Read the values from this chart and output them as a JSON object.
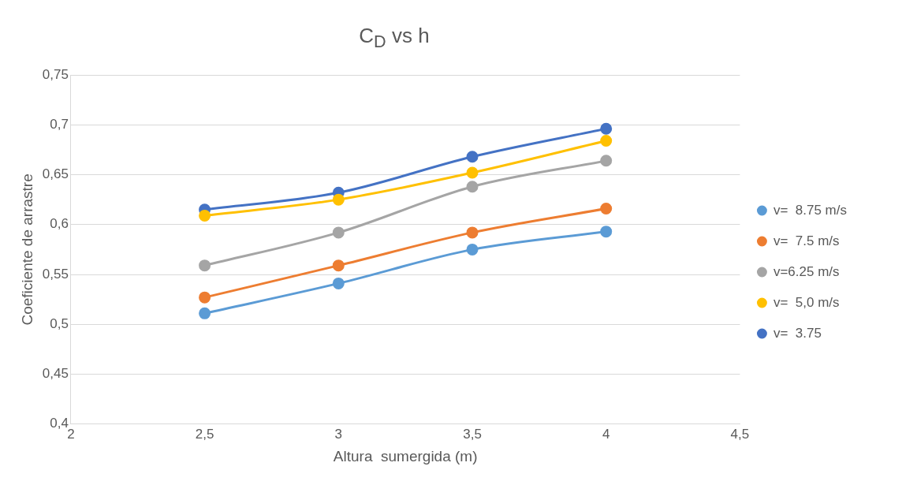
{
  "chart_data": {
    "type": "line",
    "title": "C$_{D}$ vs h",
    "xlabel": "Altura  sumergida (m)",
    "ylabel": "Coeficiente de arrastre",
    "x": [
      2.5,
      3,
      3.5,
      4
    ],
    "series": [
      {
        "name": "v=  8.75 m/s",
        "color": "#5b9bd5",
        "values": [
          0.511,
          0.541,
          0.575,
          0.593
        ]
      },
      {
        "name": "v=  7.5 m/s",
        "color": "#ed7d31",
        "values": [
          0.527,
          0.559,
          0.592,
          0.616
        ]
      },
      {
        "name": "v=6.25 m/s",
        "color": "#a5a5a5",
        "values": [
          0.559,
          0.592,
          0.638,
          0.664
        ]
      },
      {
        "name": "v=  5,0 m/s",
        "color": "#ffc000",
        "values": [
          0.609,
          0.625,
          0.652,
          0.684
        ]
      },
      {
        "name": "v=  3.75",
        "color": "#4472c4",
        "values": [
          0.615,
          0.632,
          0.668,
          0.696
        ]
      }
    ],
    "xlim": [
      2,
      4.5
    ],
    "xticks": [
      2,
      {
        "value": 2.5,
        "label": "2,5"
      },
      3,
      {
        "value": 3.5,
        "label": "3,5"
      },
      4,
      {
        "value": 4.5,
        "label": "4,5"
      }
    ],
    "ylim": [
      0.4,
      0.75
    ],
    "yticks": [
      {
        "value": 0.4,
        "label": "0,4"
      },
      {
        "value": 0.45,
        "label": "0,45"
      },
      {
        "value": 0.5,
        "label": "0,5"
      },
      {
        "value": 0.55,
        "label": "0,55"
      },
      {
        "value": 0.6,
        "label": "0,6"
      },
      {
        "value": 0.65,
        "label": "0,65"
      },
      {
        "value": 0.7,
        "label": "0,7"
      },
      {
        "value": 0.75,
        "label": "0,75"
      }
    ],
    "grid": "y",
    "legend": "right",
    "marker": "circle",
    "line_style": "solid"
  }
}
